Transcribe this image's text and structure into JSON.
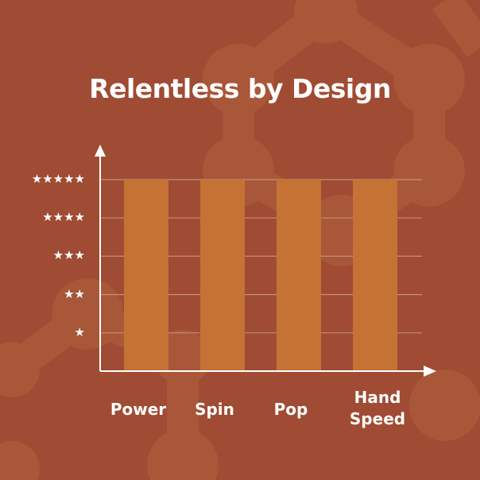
{
  "title": "Relentless by Design",
  "colors": {
    "background": "#A04B33",
    "bar": "#C57235",
    "pattern": "#A85738",
    "axis": "#FFFFFF",
    "grid": "#C98E7A"
  },
  "chart_data": {
    "type": "bar",
    "title": "Relentless by Design",
    "categories": [
      "Power",
      "Spin",
      "Pop",
      "Hand Speed"
    ],
    "values": [
      5,
      5,
      5,
      5
    ],
    "ylim": [
      0,
      5
    ],
    "y_tick_labels": [
      "★",
      "★★",
      "★★★",
      "★★★★",
      "★★★★★"
    ],
    "y_ticks": [
      1,
      2,
      3,
      4,
      5
    ],
    "grid": true,
    "xlabel": "",
    "ylabel": ""
  }
}
